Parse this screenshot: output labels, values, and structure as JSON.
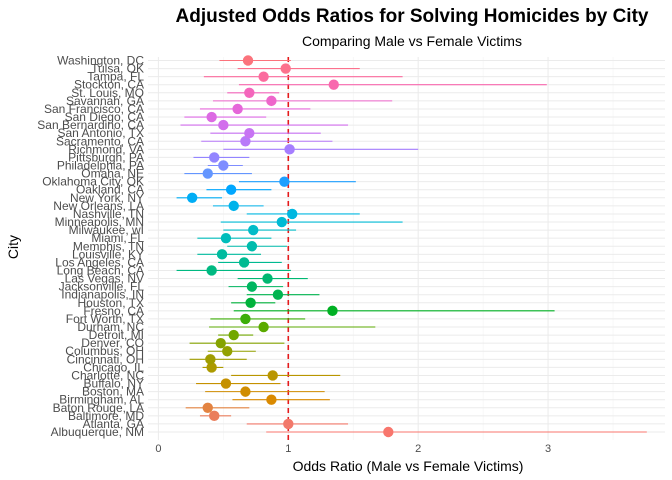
{
  "chart_data": {
    "type": "scatter",
    "title": "Adjusted Odds Ratios for Solving Homicides by City",
    "subtitle": "Comparing Male vs Female Victims",
    "xlabel": "Odds Ratio (Male vs Female Victims)",
    "ylabel": "City",
    "xlim": [
      -0.08,
      3.9
    ],
    "xticks": [
      0,
      1,
      2,
      3
    ],
    "reference_line": 1,
    "reference_color": "#e41a1c",
    "grid": true,
    "legend": "none",
    "points": [
      {
        "city": "Albuquerque, NM",
        "or": 1.77,
        "low": 0.83,
        "high": 3.76,
        "color": "#F8766D"
      },
      {
        "city": "Atlanta, GA",
        "or": 1.0,
        "low": 0.68,
        "high": 1.46,
        "color": "#F2796B"
      },
      {
        "city": "Baltimore, MD",
        "or": 0.43,
        "low": 0.32,
        "high": 0.56,
        "color": "#EA7E5C"
      },
      {
        "city": "Baton Rouge, LA",
        "or": 0.38,
        "low": 0.21,
        "high": 0.7,
        "color": "#E38341"
      },
      {
        "city": "Birmingham, AL",
        "or": 0.87,
        "low": 0.57,
        "high": 1.32,
        "color": "#DA8A00"
      },
      {
        "city": "Boston, MA",
        "or": 0.67,
        "low": 0.36,
        "high": 1.28,
        "color": "#D08D00"
      },
      {
        "city": "Buffalo, NY",
        "or": 0.52,
        "low": 0.29,
        "high": 0.94,
        "color": "#C59100"
      },
      {
        "city": "Charlotte, NC",
        "or": 0.88,
        "low": 0.56,
        "high": 1.4,
        "color": "#B99600"
      },
      {
        "city": "Chicago, IL",
        "or": 0.41,
        "low": 0.34,
        "high": 0.5,
        "color": "#AC9A00"
      },
      {
        "city": "Cincinnati, OH",
        "or": 0.4,
        "low": 0.24,
        "high": 0.68,
        "color": "#A09D00"
      },
      {
        "city": "Columbus, OH",
        "or": 0.53,
        "low": 0.38,
        "high": 0.75,
        "color": "#93A100"
      },
      {
        "city": "Denver, CO",
        "or": 0.48,
        "low": 0.24,
        "high": 0.97,
        "color": "#85A300"
      },
      {
        "city": "Detroit, MI",
        "or": 0.58,
        "low": 0.46,
        "high": 0.73,
        "color": "#72A700"
      },
      {
        "city": "Durham, NC",
        "or": 0.81,
        "low": 0.39,
        "high": 1.67,
        "color": "#5BAA00"
      },
      {
        "city": "Fort Worth, TX",
        "or": 0.67,
        "low": 0.4,
        "high": 1.13,
        "color": "#3DAE08"
      },
      {
        "city": "Fresno, CA",
        "or": 1.34,
        "low": 0.58,
        "high": 3.05,
        "color": "#00B023"
      },
      {
        "city": "Houston, TX",
        "or": 0.71,
        "low": 0.56,
        "high": 0.9,
        "color": "#00B23B"
      },
      {
        "city": "Indianapolis, IN",
        "or": 0.92,
        "low": 0.68,
        "high": 1.24,
        "color": "#00B44F"
      },
      {
        "city": "Jacksonville, FL",
        "or": 0.72,
        "low": 0.54,
        "high": 0.96,
        "color": "#00B660"
      },
      {
        "city": "Las Vegas, NV",
        "or": 0.84,
        "low": 0.61,
        "high": 1.15,
        "color": "#00B872"
      },
      {
        "city": "Long Beach, CA",
        "or": 0.41,
        "low": 0.14,
        "high": 1.02,
        "color": "#00B981"
      },
      {
        "city": "Los Angeles, CA",
        "or": 0.66,
        "low": 0.46,
        "high": 0.95,
        "color": "#00BA91"
      },
      {
        "city": "Louisville, KY",
        "or": 0.49,
        "low": 0.3,
        "high": 0.79,
        "color": "#00BB9F"
      },
      {
        "city": "Memphis, TN",
        "or": 0.72,
        "low": 0.53,
        "high": 0.99,
        "color": "#00BCAD"
      },
      {
        "city": "Miami, FL",
        "or": 0.52,
        "low": 0.3,
        "high": 0.87,
        "color": "#00BDBB"
      },
      {
        "city": "Milwaukee, wI",
        "or": 0.73,
        "low": 0.5,
        "high": 1.06,
        "color": "#00BCC8"
      },
      {
        "city": "Minneapolis, MN",
        "or": 0.95,
        "low": 0.48,
        "high": 1.88,
        "color": "#00BAD4"
      },
      {
        "city": "Nashville, TN",
        "or": 1.03,
        "low": 0.68,
        "high": 1.55,
        "color": "#00B7E0"
      },
      {
        "city": "New Orleans, LA",
        "or": 0.58,
        "low": 0.42,
        "high": 0.81,
        "color": "#00B3EB"
      },
      {
        "city": "New York, NY",
        "or": 0.26,
        "low": 0.14,
        "high": 0.49,
        "color": "#00ADF5"
      },
      {
        "city": "Oakland, CA",
        "or": 0.56,
        "low": 0.37,
        "high": 0.87,
        "color": "#00A7FF"
      },
      {
        "city": "Oklahoma City, OK",
        "or": 0.97,
        "low": 0.62,
        "high": 1.52,
        "color": "#1E9FFF"
      },
      {
        "city": "Omaha, NE",
        "or": 0.38,
        "low": 0.2,
        "high": 0.72,
        "color": "#6496FF"
      },
      {
        "city": "Philadelphia, PA",
        "or": 0.5,
        "low": 0.38,
        "high": 0.65,
        "color": "#7F8DFF"
      },
      {
        "city": "Pittsburgh, PA",
        "or": 0.43,
        "low": 0.27,
        "high": 0.7,
        "color": "#9385FF"
      },
      {
        "city": "Richmond, VA",
        "or": 1.01,
        "low": 0.5,
        "high": 2.0,
        "color": "#A67EFF"
      },
      {
        "city": "Sacramento, CA",
        "or": 0.67,
        "low": 0.33,
        "high": 1.34,
        "color": "#B879F9"
      },
      {
        "city": "San Antonio, TX",
        "or": 0.7,
        "low": 0.4,
        "high": 1.25,
        "color": "#C773F3"
      },
      {
        "city": "San Bernardino, CA",
        "or": 0.5,
        "low": 0.17,
        "high": 1.46,
        "color": "#D26EEC"
      },
      {
        "city": "San Diego, CA",
        "or": 0.41,
        "low": 0.2,
        "high": 0.83,
        "color": "#DC6AE3"
      },
      {
        "city": "San Francisco, CA",
        "or": 0.61,
        "low": 0.32,
        "high": 1.17,
        "color": "#E567D9"
      },
      {
        "city": "Savannah, GA",
        "or": 0.87,
        "low": 0.42,
        "high": 1.8,
        "color": "#EE66CB"
      },
      {
        "city": "St. Louis, MO",
        "or": 0.7,
        "low": 0.53,
        "high": 0.93,
        "color": "#F466BC"
      },
      {
        "city": "Stockton, CA",
        "or": 1.35,
        "low": 0.62,
        "high": 2.99,
        "color": "#F868AE"
      },
      {
        "city": "Tampa, FL",
        "or": 0.81,
        "low": 0.35,
        "high": 1.88,
        "color": "#FB6C9E"
      },
      {
        "city": "Tulsa, OK",
        "or": 0.98,
        "low": 0.61,
        "high": 1.55,
        "color": "#FC718D"
      },
      {
        "city": "Washington, DC",
        "or": 0.69,
        "low": 0.47,
        "high": 1.02,
        "color": "#FB737C"
      }
    ]
  }
}
